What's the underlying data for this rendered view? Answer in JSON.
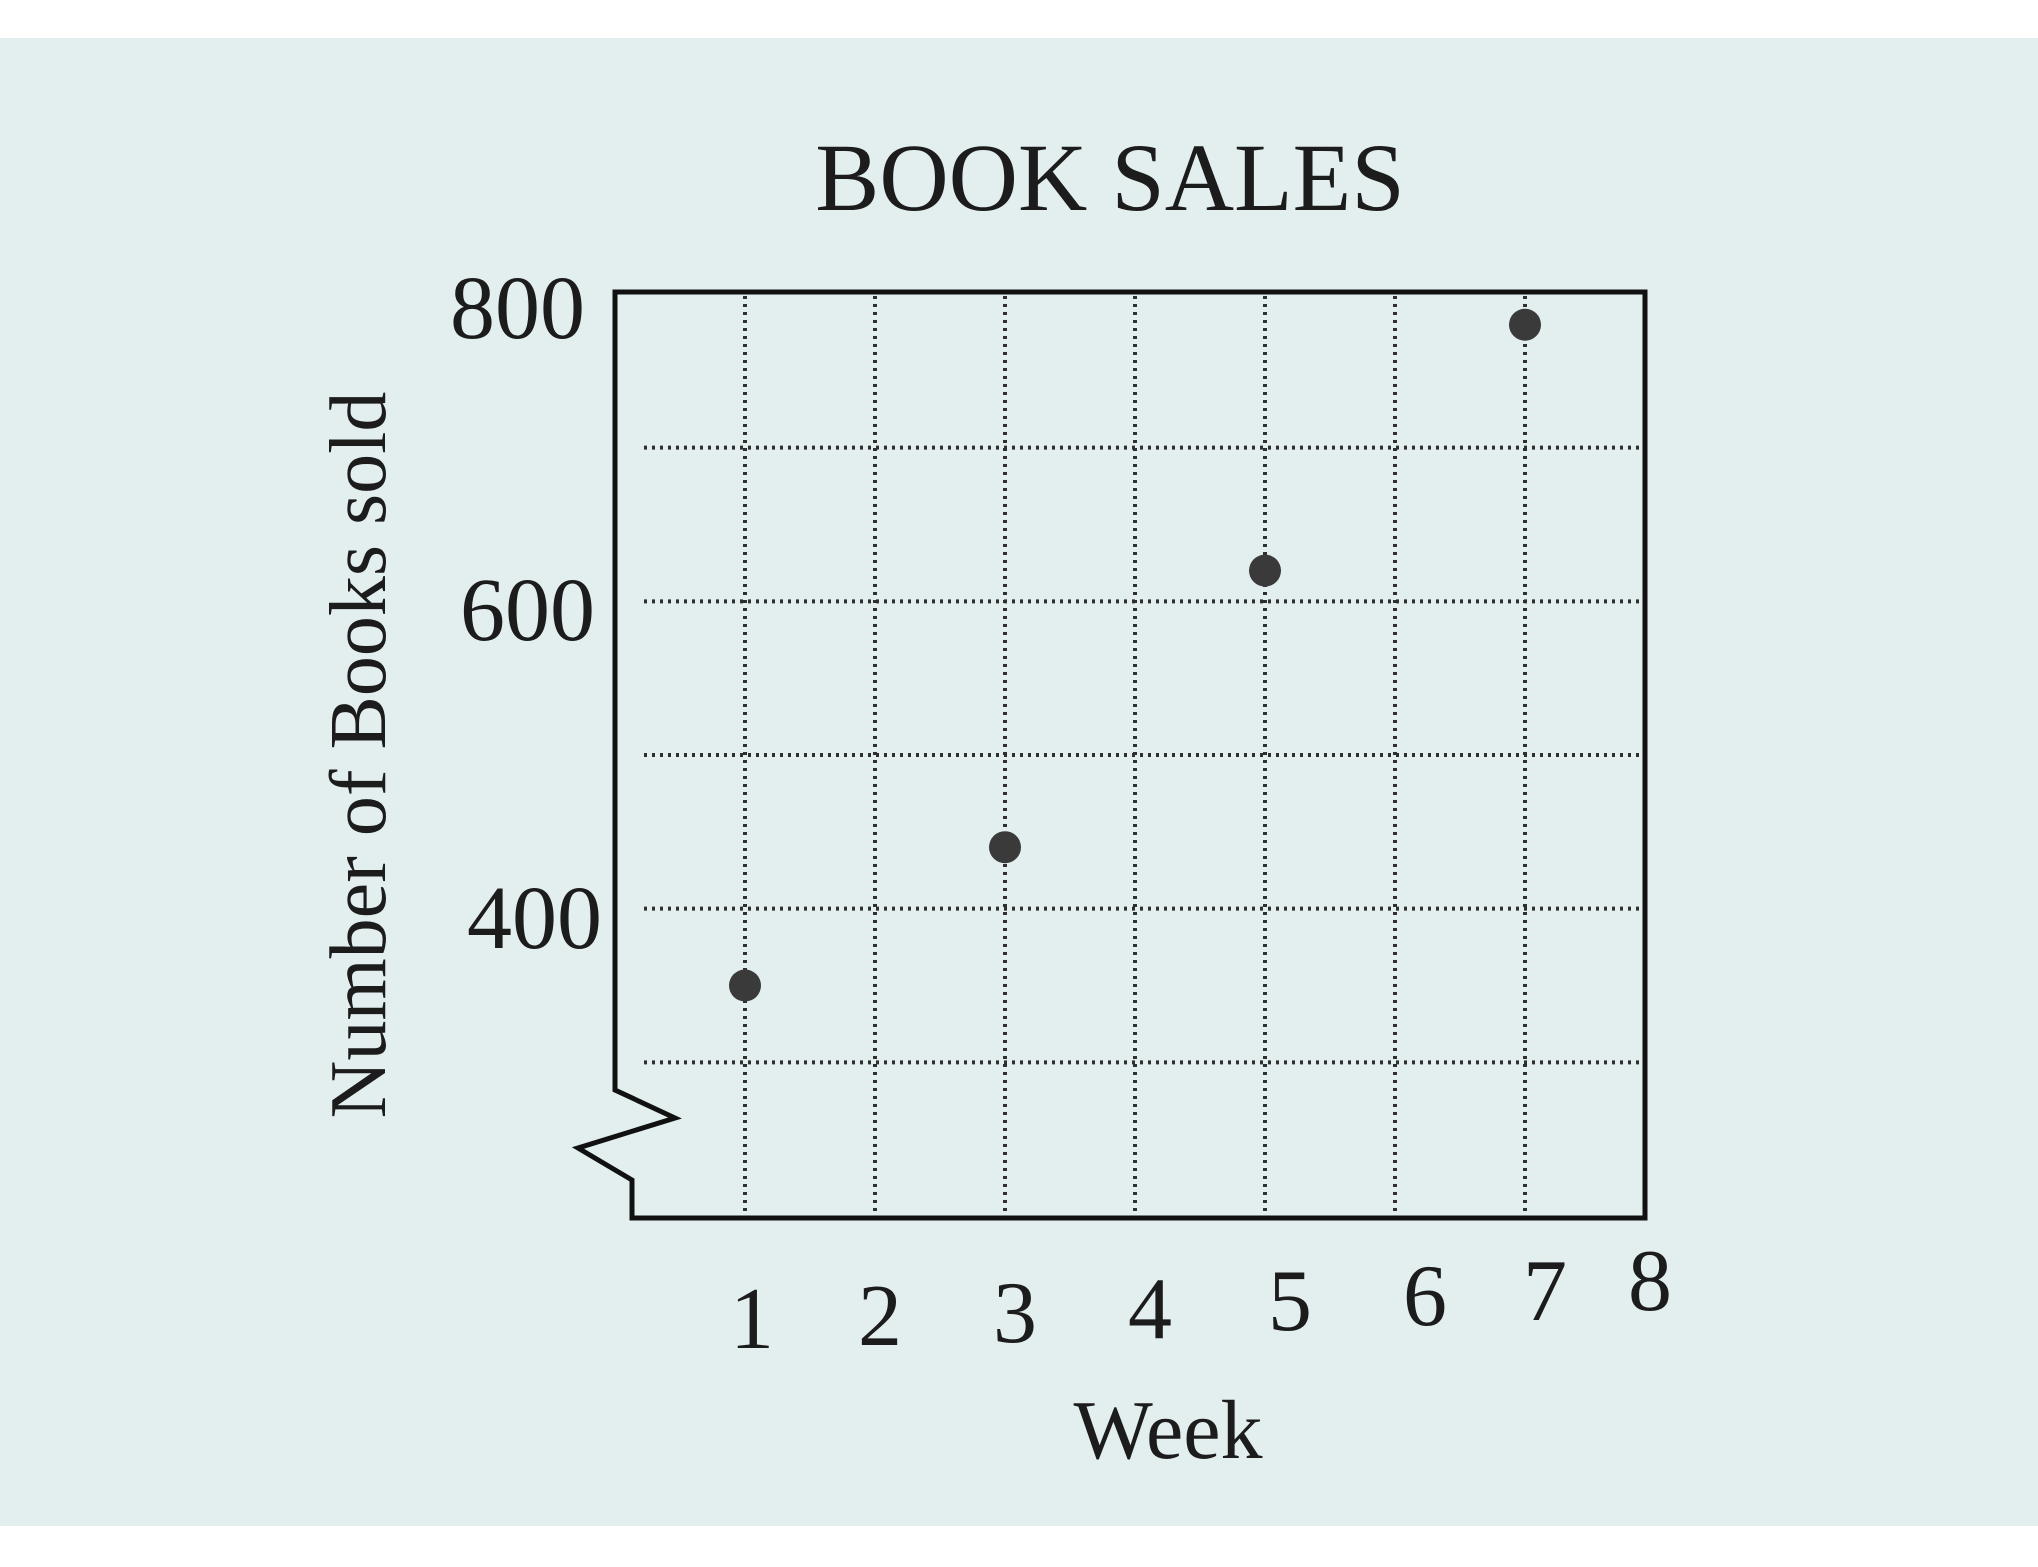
{
  "chart_data": {
    "type": "scatter",
    "title": "BOOK SALES",
    "xlabel": "Week",
    "ylabel": "Number of Books sold",
    "x_ticks": [
      "1",
      "2",
      "3",
      "4",
      "5",
      "6",
      "7",
      "8"
    ],
    "y_ticks": [
      "400",
      "600",
      "800"
    ],
    "xlim": [
      0.1,
      7.0
    ],
    "ylim": [
      200,
      800
    ],
    "axis_break": "y",
    "grid": true,
    "legend": "none",
    "marker_color": "#3a3a3a",
    "points": [
      {
        "x": 1,
        "y": 350
      },
      {
        "x": 3,
        "y": 440
      },
      {
        "x": 5,
        "y": 620
      },
      {
        "x": 7,
        "y": 780
      }
    ]
  }
}
